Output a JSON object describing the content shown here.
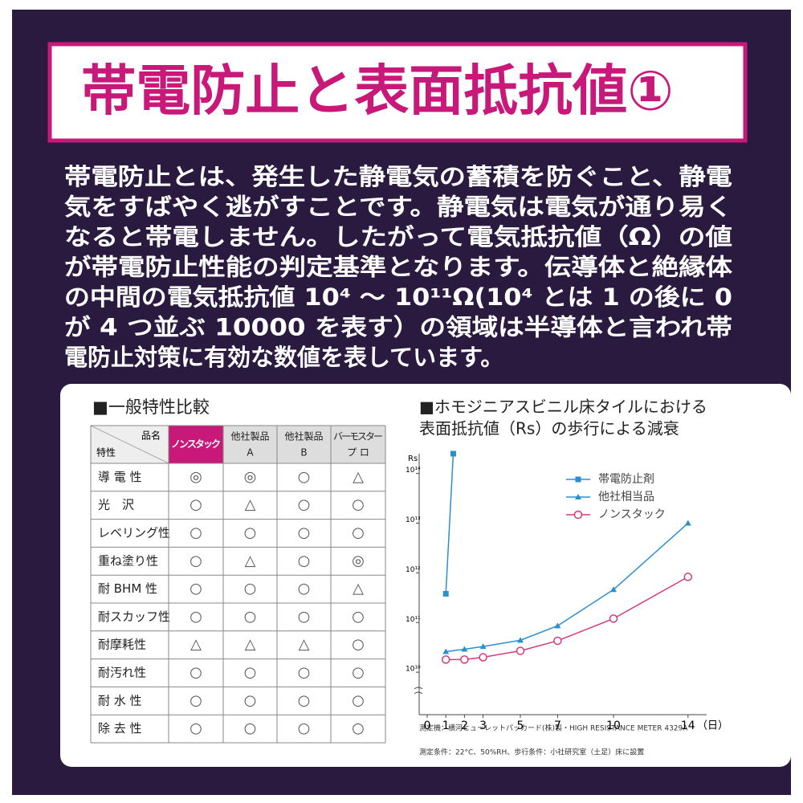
{
  "header": {
    "title": "帯電防止と表面抵抗値①"
  },
  "body": {
    "lines": [
      "帯電防止とは、発生した静電気の蓄積を防ぐこと、静電",
      "気をすばやく逃がすことです。静電気は電気が通り易く",
      "なると帯電しません。したがって電気抵抗値（Ω）の値",
      "が帯電防止性能の判定基準となります。伝導体と絶縁体",
      "の中間の電気抵抗値 10⁴ ～ 10¹¹Ω(10⁴ とは 1 の後に 0",
      "が 4 つ並ぶ 10000 を表す）の領域は半導体と言われ帯",
      "電防止対策に有効な数値を表しています。"
    ]
  },
  "table": {
    "title": "■一般特性比較",
    "corner": [
      "品名",
      "特性"
    ],
    "columns": [
      [
        "ノンスタック"
      ],
      [
        "他社製品",
        "A"
      ],
      [
        "他社製品",
        "B"
      ],
      [
        "バーモスター",
        "プ ロ"
      ]
    ],
    "rows": [
      {
        "label": "導 電 性",
        "cells": [
          "◎",
          "◎",
          "○",
          "△"
        ]
      },
      {
        "label": "光　沢",
        "cells": [
          "○",
          "△",
          "○",
          "○"
        ]
      },
      {
        "label": "レベリング性",
        "cells": [
          "○",
          "○",
          "○",
          "○"
        ]
      },
      {
        "label": "重ね塗り性",
        "cells": [
          "○",
          "△",
          "○",
          "◎"
        ]
      },
      {
        "label": "耐 BHM 性",
        "cells": [
          "○",
          "○",
          "○",
          "△"
        ]
      },
      {
        "label": "耐スカッフ性",
        "cells": [
          "○",
          "○",
          "○",
          "○"
        ]
      },
      {
        "label": "耐摩耗性",
        "cells": [
          "△",
          "△",
          "△",
          "○"
        ]
      },
      {
        "label": "耐汚れ性",
        "cells": [
          "○",
          "○",
          "○",
          "○"
        ]
      },
      {
        "label": "耐 水 性",
        "cells": [
          "○",
          "○",
          "○",
          "○"
        ]
      },
      {
        "label": "除 去 性",
        "cells": [
          "○",
          "○",
          "○",
          "○"
        ]
      }
    ]
  },
  "chart_data": {
    "type": "line",
    "title": [
      "■ホモジニアスビニル床タイルにおける",
      "表面抵抗値（Rs）の歩行による減衰"
    ],
    "y_label": "Rs",
    "x_label": "（日）",
    "log_y": true,
    "xlim": [
      0,
      15
    ],
    "xticks": [
      0,
      1,
      2,
      3,
      5,
      7,
      10,
      14
    ],
    "ylim": [
      1400000000,
      250000000000000
    ],
    "yticks": [
      {
        "value": 10000000000,
        "label": "10¹⁰"
      },
      {
        "value": 100000000000,
        "label": "10¹¹"
      },
      {
        "value": 1000000000000,
        "label": "10¹²"
      },
      {
        "value": 10000000000000,
        "label": "10¹³"
      },
      {
        "value": 100000000000000,
        "label": "10¹⁴"
      }
    ],
    "series": [
      {
        "name": "帯電防止剤",
        "color": "#2a8fd0",
        "marker": "square",
        "x": [
          1,
          1.4
        ],
        "values": [
          380000000000,
          250000000000000
        ]
      },
      {
        "name": "他社相当品",
        "color": "#2a8fd0",
        "marker": "triangle",
        "x": [
          1,
          2,
          3,
          5,
          7,
          10,
          14
        ],
        "values": [
          26000000000,
          29000000000,
          33000000000,
          44000000000,
          86000000000,
          460000000000,
          10000000000000
        ]
      },
      {
        "name": "ノンスタック",
        "color": "#d63a7a",
        "marker": "circle",
        "x": [
          1,
          2,
          3,
          5,
          7,
          10,
          14
        ],
        "values": [
          18000000000,
          18000000000,
          20000000000,
          27000000000,
          43000000000,
          120000000000,
          830000000000
        ]
      }
    ],
    "notes": [
      "測定機：横河ヒューレットパッカード(株)製・HIGH RESISTANCE METER 4329A",
      "測定条件：22°C、50%RH、歩行条件：小社研究室（土足）床に設置"
    ]
  }
}
